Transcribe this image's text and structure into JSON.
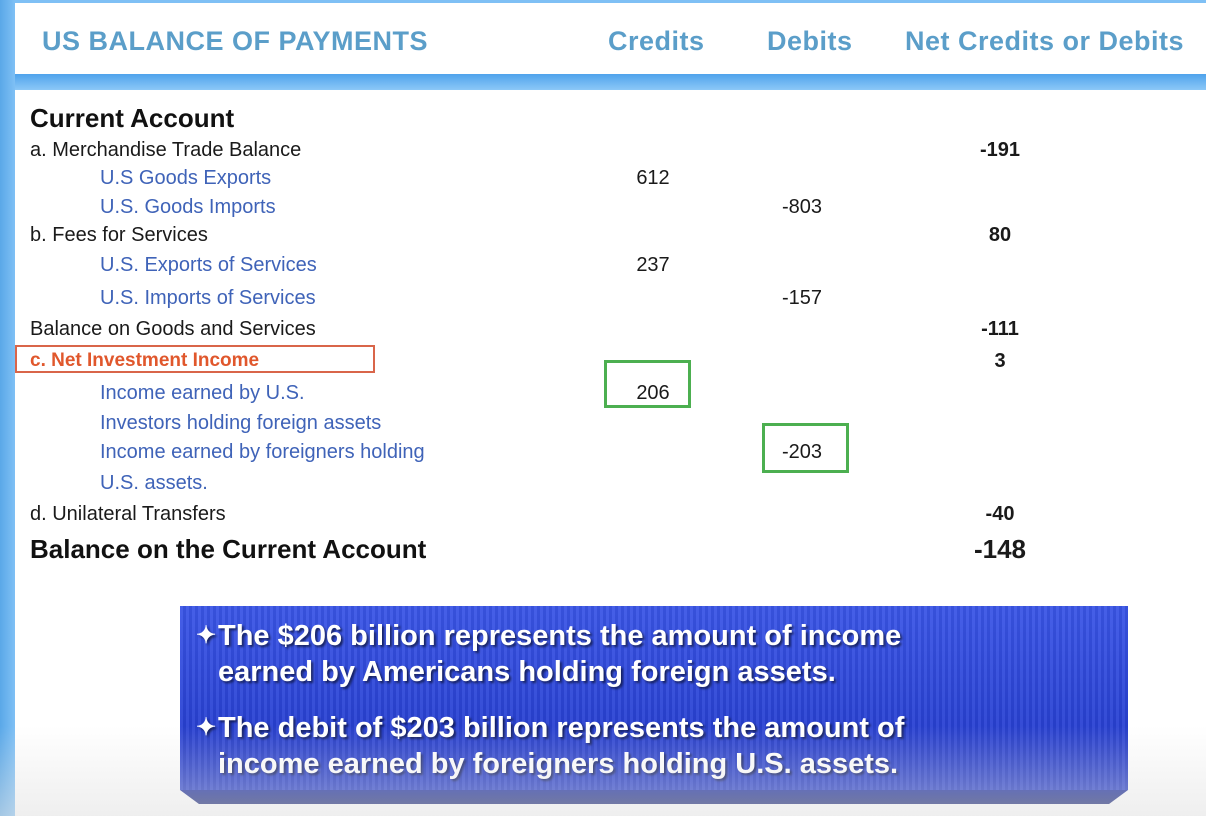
{
  "header": {
    "title": "US BALANCE OF PAYMENTS",
    "credits": "Credits",
    "debits": "Debits",
    "net": "Net Credits or Debits"
  },
  "table": {
    "section_title": "Current Account",
    "rows": [
      {
        "label": "a. Merchandise Trade Balance",
        "credit": "",
        "debit": "",
        "net": "-191"
      },
      {
        "label": "U.S Goods Exports",
        "credit": "612",
        "debit": "",
        "net": ""
      },
      {
        "label": "U.S. Goods Imports",
        "credit": "",
        "debit": "-803",
        "net": ""
      },
      {
        "label": "b. Fees for Services",
        "credit": "",
        "debit": "",
        "net": "80"
      },
      {
        "label": "U.S. Exports of Services",
        "credit": "237",
        "debit": "",
        "net": ""
      },
      {
        "label": "U.S. Imports of Services",
        "credit": "",
        "debit": "-157",
        "net": ""
      },
      {
        "label": "Balance on Goods and Services",
        "credit": "",
        "debit": "",
        "net": "-111"
      },
      {
        "label": "c. Net Investment Income",
        "credit": "",
        "debit": "",
        "net": "3"
      },
      {
        "label": "Income earned by U.S.",
        "credit": "206",
        "debit": "",
        "net": ""
      },
      {
        "label": "Investors holding foreign assets",
        "credit": "",
        "debit": "",
        "net": ""
      },
      {
        "label": "Income earned by foreigners holding",
        "credit": "",
        "debit": "-203",
        "net": ""
      },
      {
        "label": "U.S. assets.",
        "credit": "",
        "debit": "",
        "net": ""
      },
      {
        "label": "d. Unilateral Transfers",
        "credit": "",
        "debit": "",
        "net": "-40"
      },
      {
        "label": "Balance on the Current Account",
        "credit": "",
        "debit": "",
        "net": "-148"
      }
    ]
  },
  "notes": {
    "bullet_mark": "✦",
    "bullet1_line1": "The $206 billion represents the amount of income",
    "bullet1_line2": "earned by Americans holding foreign assets.",
    "bullet2_line1": "The debit of $203 billion represents the amount of",
    "bullet2_line2": "income earned by foreigners holding U.S. assets."
  },
  "colors": {
    "header_text": "#5b9ec9",
    "sub_item_text": "#3f63b8",
    "highlight_red": "#e0572c",
    "highlight_green": "#4caf50",
    "note_bg": "#2a44d8"
  }
}
